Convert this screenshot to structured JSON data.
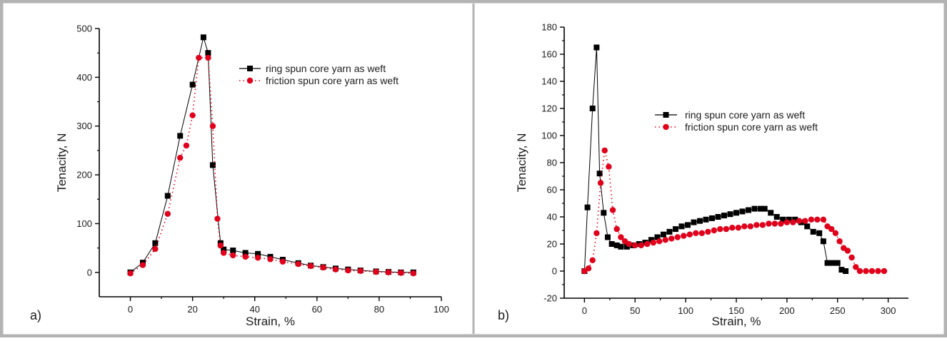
{
  "colors": {
    "frame": "#b3b3b3",
    "axis": "#000000",
    "ring": "#000000",
    "friction": "#e0001b"
  },
  "chart_data": [
    {
      "type": "line",
      "panel_label": "a)",
      "xlabel": "Strain, %",
      "ylabel": "Tenacity, N",
      "xlim": [
        -10,
        100
      ],
      "ylim": [
        -50,
        500
      ],
      "xticks": [
        0,
        20,
        40,
        60,
        80,
        100
      ],
      "yticks": [
        0,
        100,
        200,
        300,
        400,
        500
      ],
      "grid": false,
      "legend_position": "top-right",
      "series": [
        {
          "name": "ring spun core yarn as weft",
          "marker": "square",
          "line": "solid",
          "points": [
            [
              0,
              0
            ],
            [
              4,
              20
            ],
            [
              8,
              60
            ],
            [
              12,
              157
            ],
            [
              16,
              280
            ],
            [
              20,
              385
            ],
            [
              23.5,
              482
            ],
            [
              25,
              450
            ],
            [
              26.5,
              220
            ],
            [
              29,
              60
            ],
            [
              30,
              47
            ],
            [
              33,
              45
            ],
            [
              37,
              40
            ],
            [
              41,
              38
            ],
            [
              45,
              32
            ],
            [
              49,
              26
            ],
            [
              54,
              19
            ],
            [
              58,
              14
            ],
            [
              62,
              11
            ],
            [
              66,
              8
            ],
            [
              70,
              6
            ],
            [
              74,
              4
            ],
            [
              79,
              2
            ],
            [
              83,
              1
            ],
            [
              87,
              0
            ],
            [
              91,
              0
            ]
          ]
        },
        {
          "name": "friction spun core yarn as weft",
          "marker": "circle",
          "line": "dotted",
          "points": [
            [
              0,
              -2
            ],
            [
              4,
              15
            ],
            [
              8,
              48
            ],
            [
              12,
              120
            ],
            [
              16,
              235
            ],
            [
              18,
              260
            ],
            [
              20,
              322
            ],
            [
              22,
              440
            ],
            [
              25,
              440
            ],
            [
              26.5,
              300
            ],
            [
              28,
              110
            ],
            [
              29,
              55
            ],
            [
              30,
              40
            ],
            [
              33,
              35
            ],
            [
              37,
              32
            ],
            [
              41,
              30
            ],
            [
              45,
              27
            ],
            [
              49,
              22
            ],
            [
              54,
              17
            ],
            [
              58,
              13
            ],
            [
              62,
              10
            ],
            [
              66,
              6
            ],
            [
              70,
              4
            ],
            [
              74,
              3
            ],
            [
              79,
              1
            ],
            [
              83,
              0
            ],
            [
              87,
              -1
            ],
            [
              91,
              -2
            ]
          ]
        }
      ]
    },
    {
      "type": "line",
      "panel_label": "b)",
      "xlabel": "Strain, %",
      "ylabel": "Tenacity, N",
      "xlim": [
        -20,
        320
      ],
      "ylim": [
        -20,
        180
      ],
      "xticks": [
        0,
        50,
        100,
        150,
        200,
        250,
        300
      ],
      "yticks": [
        -20,
        0,
        20,
        40,
        60,
        80,
        100,
        120,
        140,
        160,
        180
      ],
      "grid": false,
      "legend_position": "upper-center",
      "series": [
        {
          "name": "ring spun core yarn as weft",
          "marker": "square",
          "line": "solid",
          "points": [
            [
              0,
              0
            ],
            [
              3,
              47
            ],
            [
              8,
              120
            ],
            [
              12,
              165
            ],
            [
              15,
              72
            ],
            [
              19,
              43
            ],
            [
              23,
              25
            ],
            [
              27,
              20
            ],
            [
              32,
              19
            ],
            [
              36,
              18
            ],
            [
              42,
              18
            ],
            [
              48,
              19
            ],
            [
              54,
              20
            ],
            [
              60,
              21
            ],
            [
              66,
              23
            ],
            [
              72,
              25
            ],
            [
              78,
              27
            ],
            [
              84,
              29
            ],
            [
              90,
              31
            ],
            [
              96,
              33
            ],
            [
              102,
              34
            ],
            [
              108,
              36
            ],
            [
              114,
              37
            ],
            [
              120,
              38
            ],
            [
              126,
              39
            ],
            [
              132,
              40
            ],
            [
              138,
              41
            ],
            [
              144,
              42
            ],
            [
              150,
              43
            ],
            [
              156,
              44
            ],
            [
              162,
              45
            ],
            [
              168,
              46
            ],
            [
              174,
              46
            ],
            [
              178,
              46
            ],
            [
              184,
              43
            ],
            [
              190,
              40
            ],
            [
              196,
              38
            ],
            [
              202,
              38
            ],
            [
              208,
              38
            ],
            [
              214,
              36
            ],
            [
              220,
              33
            ],
            [
              226,
              29
            ],
            [
              232,
              28
            ],
            [
              236,
              22
            ],
            [
              240,
              6
            ],
            [
              245,
              6
            ],
            [
              250,
              6
            ],
            [
              254,
              1
            ],
            [
              258,
              0
            ]
          ]
        },
        {
          "name": "friction spun core yarn as weft",
          "marker": "circle",
          "line": "dotted",
          "points": [
            [
              0,
              0
            ],
            [
              4,
              2
            ],
            [
              8,
              8
            ],
            [
              12,
              28
            ],
            [
              16,
              65
            ],
            [
              20,
              89
            ],
            [
              24,
              77
            ],
            [
              28,
              45
            ],
            [
              32,
              31
            ],
            [
              36,
              25
            ],
            [
              40,
              22
            ],
            [
              44,
              20
            ],
            [
              50,
              19
            ],
            [
              56,
              19
            ],
            [
              62,
              20
            ],
            [
              68,
              21
            ],
            [
              74,
              22
            ],
            [
              80,
              23
            ],
            [
              86,
              24
            ],
            [
              92,
              25
            ],
            [
              98,
              26
            ],
            [
              104,
              27
            ],
            [
              110,
              28
            ],
            [
              116,
              28
            ],
            [
              122,
              29
            ],
            [
              128,
              30
            ],
            [
              134,
              31
            ],
            [
              140,
              31
            ],
            [
              146,
              32
            ],
            [
              152,
              32
            ],
            [
              158,
              33
            ],
            [
              164,
              33
            ],
            [
              170,
              34
            ],
            [
              176,
              34
            ],
            [
              182,
              35
            ],
            [
              188,
              35
            ],
            [
              194,
              35
            ],
            [
              200,
              36
            ],
            [
              206,
              36
            ],
            [
              212,
              37
            ],
            [
              218,
              37
            ],
            [
              224,
              38
            ],
            [
              230,
              38
            ],
            [
              236,
              38
            ],
            [
              240,
              33
            ],
            [
              244,
              31
            ],
            [
              248,
              28
            ],
            [
              252,
              22
            ],
            [
              256,
              17
            ],
            [
              260,
              15
            ],
            [
              264,
              10
            ],
            [
              268,
              3
            ],
            [
              272,
              0
            ],
            [
              278,
              0
            ],
            [
              284,
              0
            ],
            [
              290,
              0
            ],
            [
              296,
              0
            ]
          ]
        }
      ]
    }
  ]
}
